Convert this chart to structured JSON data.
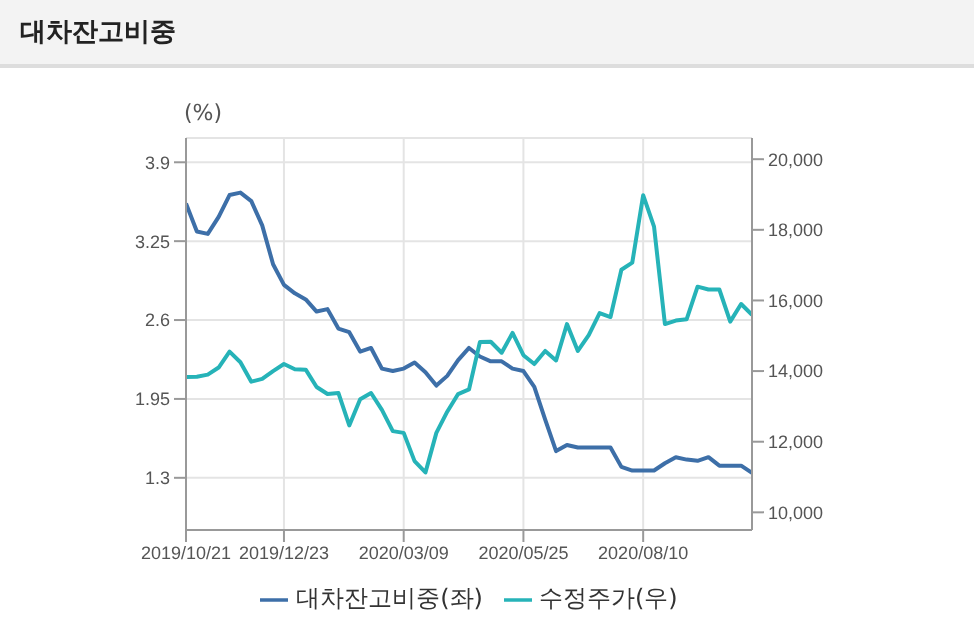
{
  "chart_data": {
    "type": "line",
    "title": "대차잔고비중",
    "ylabel": "(%)",
    "categories": [
      "2019/10/21",
      null,
      null,
      null,
      null,
      null,
      null,
      null,
      null,
      "2019/12/23",
      null,
      null,
      null,
      null,
      null,
      null,
      null,
      null,
      null,
      null,
      "2020/03/09",
      null,
      null,
      null,
      null,
      null,
      null,
      null,
      null,
      null,
      null,
      "2020/05/25",
      null,
      null,
      null,
      null,
      null,
      null,
      null,
      null,
      null,
      null,
      "2020/08/10",
      null,
      null,
      null,
      null,
      null,
      null,
      null,
      null,
      null,
      null
    ],
    "series": [
      {
        "name": "대차잔고비중(좌)",
        "color": "#3d6fa8",
        "values": [
          3.56,
          3.33,
          3.31,
          3.45,
          3.63,
          3.65,
          3.58,
          3.38,
          3.06,
          2.89,
          2.82,
          2.77,
          2.67,
          2.69,
          2.53,
          2.5,
          2.34,
          2.37,
          2.2,
          2.18,
          2.2,
          2.25,
          2.17,
          2.06,
          2.14,
          2.27,
          2.37,
          2.3,
          2.26,
          2.26,
          2.2,
          2.18,
          2.05,
          1.78,
          1.52,
          1.57,
          1.55,
          1.55,
          1.55,
          1.55,
          1.39,
          1.36,
          1.36,
          1.36,
          1.42,
          1.47,
          1.45,
          1.44,
          1.47,
          1.4,
          1.4,
          1.4,
          1.34
        ]
      },
      {
        "name": "수정주가(우)",
        "color": "#26b3b8",
        "axis": "y2",
        "values": [
          13830,
          13840,
          13900,
          14100,
          14550,
          14250,
          13700,
          13780,
          14000,
          14200,
          14050,
          14040,
          13550,
          13350,
          13380,
          12460,
          13200,
          13380,
          12900,
          12300,
          12250,
          11450,
          11130,
          12250,
          12850,
          13350,
          13480,
          14820,
          14830,
          14520,
          15080,
          14450,
          14200,
          14570,
          14300,
          15330,
          14570,
          15020,
          15640,
          15530,
          16870,
          17070,
          18980,
          18090,
          15330,
          15430,
          15470,
          16390,
          16310,
          16310,
          15400,
          15900,
          15590
        ]
      }
    ],
    "ylim": [
      0.87,
      4.1
    ],
    "yticks": [
      1.3,
      1.95,
      2.6,
      3.25,
      3.9
    ],
    "y2lim": [
      9500,
      20600
    ],
    "y2ticks": [
      {
        "value": 10000,
        "label": "10,000"
      },
      {
        "value": 12000,
        "label": "12,000"
      },
      {
        "value": 14000,
        "label": "14,000"
      },
      {
        "value": 16000,
        "label": "16,000"
      },
      {
        "value": 18000,
        "label": "18,000"
      },
      {
        "value": 20000,
        "label": "20,000"
      }
    ],
    "grid": true,
    "legend": "bottom",
    "marker": "none",
    "line_style": "solid"
  }
}
